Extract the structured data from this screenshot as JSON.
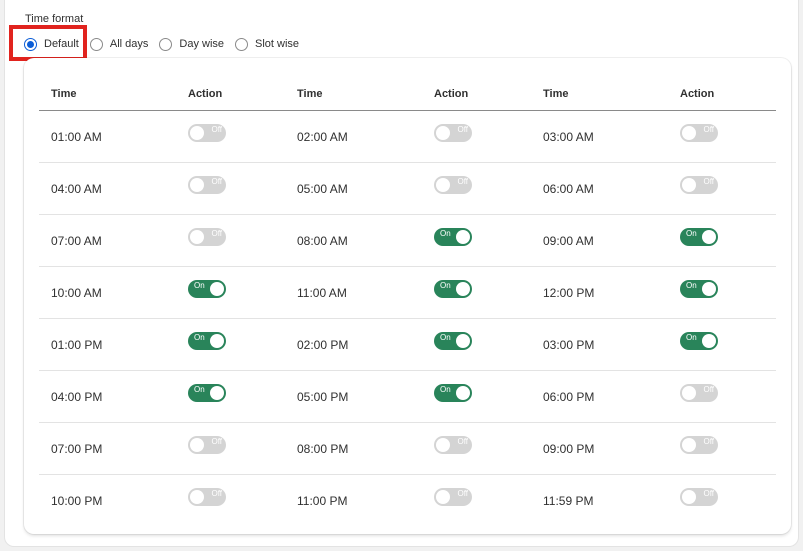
{
  "time_format": {
    "label": "Time format",
    "options": [
      {
        "label": "Default",
        "checked": true
      },
      {
        "label": "All days",
        "checked": false
      },
      {
        "label": "Day wise",
        "checked": false
      },
      {
        "label": "Slot wise",
        "checked": false
      }
    ]
  },
  "table": {
    "headers": [
      "Time",
      "Action",
      "Time",
      "Action",
      "Time",
      "Action"
    ],
    "rows": [
      [
        {
          "time": "01:00 AM",
          "on": false,
          "label": "Off"
        },
        {
          "time": "02:00 AM",
          "on": false,
          "label": "Off"
        },
        {
          "time": "03:00 AM",
          "on": false,
          "label": "Off"
        }
      ],
      [
        {
          "time": "04:00 AM",
          "on": false,
          "label": "Off"
        },
        {
          "time": "05:00 AM",
          "on": false,
          "label": "Off"
        },
        {
          "time": "06:00 AM",
          "on": false,
          "label": "Off"
        }
      ],
      [
        {
          "time": "07:00 AM",
          "on": false,
          "label": "Off"
        },
        {
          "time": "08:00 AM",
          "on": true,
          "label": "On"
        },
        {
          "time": "09:00 AM",
          "on": true,
          "label": "On"
        }
      ],
      [
        {
          "time": "10:00 AM",
          "on": true,
          "label": "On"
        },
        {
          "time": "11:00 AM",
          "on": true,
          "label": "On"
        },
        {
          "time": "12:00 PM",
          "on": true,
          "label": "On"
        }
      ],
      [
        {
          "time": "01:00 PM",
          "on": true,
          "label": "On"
        },
        {
          "time": "02:00 PM",
          "on": true,
          "label": "On"
        },
        {
          "time": "03:00 PM",
          "on": true,
          "label": "On"
        }
      ],
      [
        {
          "time": "04:00 PM",
          "on": true,
          "label": "On"
        },
        {
          "time": "05:00 PM",
          "on": true,
          "label": "On"
        },
        {
          "time": "06:00 PM",
          "on": false,
          "label": "Off"
        }
      ],
      [
        {
          "time": "07:00 PM",
          "on": false,
          "label": "Off"
        },
        {
          "time": "08:00 PM",
          "on": false,
          "label": "Off"
        },
        {
          "time": "09:00 PM",
          "on": false,
          "label": "Off"
        }
      ],
      [
        {
          "time": "10:00 PM",
          "on": false,
          "label": "Off"
        },
        {
          "time": "11:00 PM",
          "on": false,
          "label": "Off"
        },
        {
          "time": "11:59 PM",
          "on": false,
          "label": "Off"
        }
      ]
    ]
  },
  "colors": {
    "toggle_on": "#29845a",
    "toggle_off": "#d4d4d4",
    "radio_accent": "#0b5dd7",
    "highlight": "#e1231e"
  }
}
